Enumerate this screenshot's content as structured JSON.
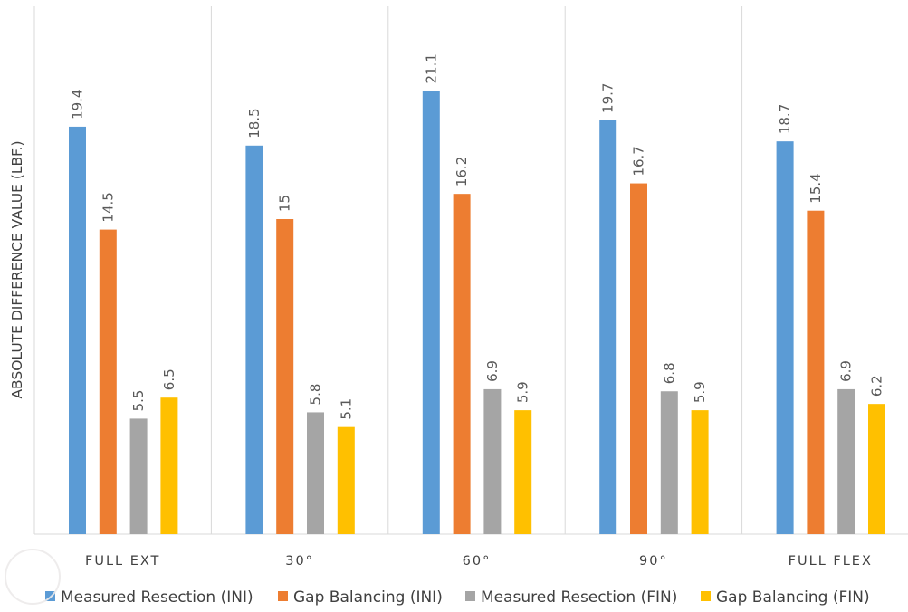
{
  "chart_data": {
    "type": "bar",
    "categories": [
      "FULL EXT",
      "30°",
      "60°",
      "90°",
      "FULL FLEX"
    ],
    "series": [
      {
        "name": "Measured Resection (INI)",
        "values": [
          19.4,
          18.5,
          21.1,
          19.7,
          18.7
        ],
        "labels": [
          "19.4",
          "18.5",
          "21.1",
          "19.7",
          "18.7"
        ],
        "color": "#5B9BD5"
      },
      {
        "name": "Gap Balancing (INI)",
        "values": [
          14.5,
          15,
          16.2,
          16.7,
          15.4
        ],
        "labels": [
          "14.5",
          "15",
          "16.2",
          "16.7",
          "15.4"
        ],
        "color": "#ED7D31"
      },
      {
        "name": "Measured Resection (FIN)",
        "values": [
          5.5,
          5.8,
          6.9,
          6.8,
          6.9
        ],
        "labels": [
          "5.5",
          "5.8",
          "6.9",
          "6.8",
          "6.9"
        ],
        "color": "#A5A5A5"
      },
      {
        "name": "Gap Balancing (FIN)",
        "values": [
          6.5,
          5.1,
          5.9,
          5.9,
          6.2
        ],
        "labels": [
          "6.5",
          "5.1",
          "5.9",
          "5.9",
          "6.2"
        ],
        "color": "#FFC000"
      }
    ],
    "title": "",
    "xlabel": "",
    "ylabel": "ABSOLUTE DIFFERENCE VALUE (LBF.)",
    "ylim": [
      0,
      25
    ],
    "grid": false,
    "legend": "bottom"
  }
}
